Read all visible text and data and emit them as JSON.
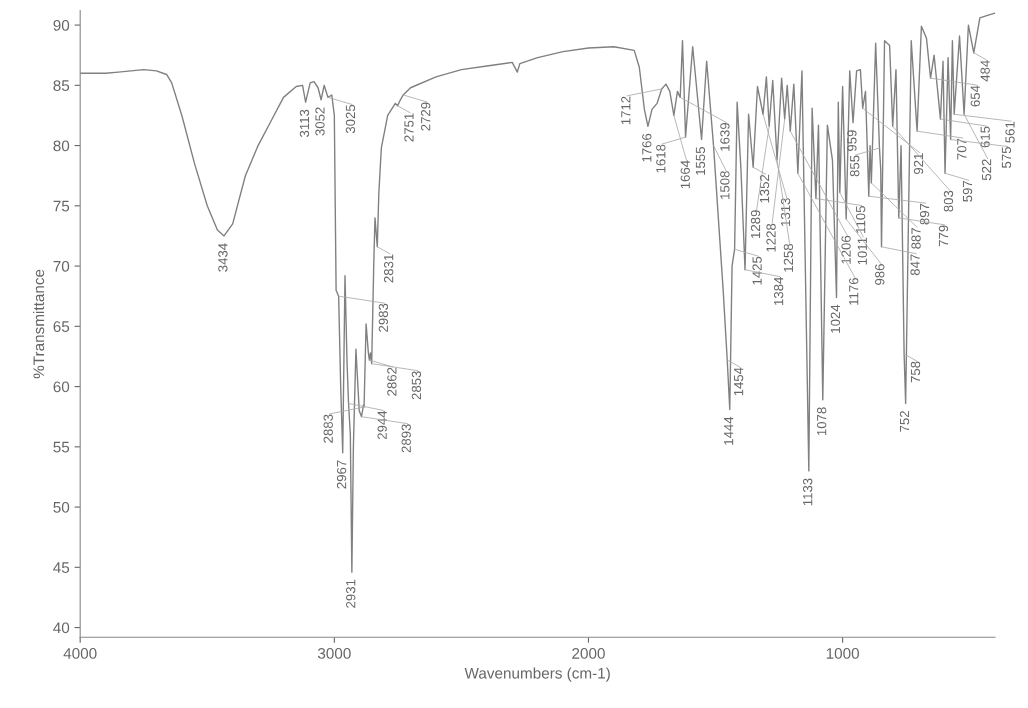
{
  "chart_data": {
    "type": "line",
    "xlabel": "Wavenumbers (cm-1)",
    "ylabel": "%Transmittance",
    "xlim": [
      4000,
      400
    ],
    "xticks": [
      4000,
      3000,
      2000,
      1000
    ],
    "ylim": [
      39.2,
      91.2
    ],
    "yticks": [
      40,
      45,
      50,
      55,
      60,
      65,
      70,
      75,
      80,
      85,
      90
    ],
    "grid": false,
    "legend": false,
    "marker": "none",
    "line_style": "solid",
    "series": [
      {
        "color": "#808080",
        "x": [
          4000,
          3900,
          3850,
          3800,
          3750,
          3700,
          3660,
          3640,
          3600,
          3550,
          3500,
          3460,
          3434,
          3400,
          3350,
          3300,
          3250,
          3200,
          3150,
          3125,
          3113,
          3095,
          3080,
          3064,
          3052,
          3040,
          3025,
          3010,
          3000,
          2993,
          2983,
          2975,
          2967,
          2958,
          2950,
          2944,
          2937,
          2931,
          2925,
          2915,
          2902,
          2893,
          2885,
          2883,
          2875,
          2866,
          2862,
          2858,
          2853,
          2845,
          2840,
          2831,
          2825,
          2815,
          2790,
          2760,
          2751,
          2740,
          2729,
          2700,
          2600,
          2500,
          2400,
          2300,
          2280,
          2270,
          2200,
          2100,
          2000,
          1900,
          1820,
          1800,
          1780,
          1766,
          1750,
          1730,
          1712,
          1695,
          1680,
          1664,
          1650,
          1639,
          1630,
          1618,
          1590,
          1555,
          1535,
          1508,
          1470,
          1454,
          1444,
          1435,
          1425,
          1415,
          1400,
          1384,
          1370,
          1352,
          1335,
          1313,
          1300,
          1289,
          1275,
          1258,
          1240,
          1228,
          1218,
          1206,
          1192,
          1176,
          1160,
          1133,
          1120,
          1105,
          1095,
          1078,
          1060,
          1040,
          1024,
          1017,
          1011,
          1000,
          986,
          972,
          959,
          945,
          930,
          921,
          910,
          897,
          892,
          887,
          870,
          855,
          850,
          847,
          835,
          815,
          803,
          790,
          779,
          770,
          758,
          752,
          730,
          707,
          690,
          670,
          654,
          640,
          615,
          605,
          597,
          585,
          575,
          568,
          561,
          540,
          522,
          505,
          484,
          460,
          430,
          400
        ],
        "values": [
          86.0,
          86.0,
          86.1,
          86.2,
          86.3,
          86.2,
          85.9,
          85.2,
          82.5,
          78.5,
          75.0,
          73.0,
          72.5,
          73.5,
          77.5,
          80.0,
          82.0,
          84.0,
          84.9,
          85.0,
          83.6,
          85.2,
          85.3,
          84.8,
          83.8,
          85.0,
          84.0,
          84.2,
          82.5,
          68.0,
          67.5,
          60,
          54.5,
          69.2,
          62,
          58.6,
          56,
          44.6,
          55,
          63.1,
          58.0,
          57.5,
          58.5,
          58.3,
          65.2,
          62.8,
          62.2,
          62.8,
          61.9,
          70.0,
          74.0,
          71.6,
          76,
          79.8,
          82.5,
          83.5,
          83.3,
          83.8,
          84.2,
          84.8,
          85.7,
          86.3,
          86.6,
          86.9,
          86.1,
          86.8,
          87.3,
          87.8,
          88.1,
          88.2,
          87.9,
          86.5,
          83,
          81.6,
          83.0,
          83.5,
          84.7,
          85.1,
          84.5,
          82.5,
          84.5,
          84.0,
          88.7,
          80.7,
          88.2,
          80.5,
          87.0,
          80.0,
          68,
          62.2,
          58.1,
          70,
          71.4,
          83.6,
          78,
          69.7,
          82.6,
          78.2,
          84.9,
          82.6,
          85.7,
          81.6,
          85.4,
          78.8,
          85.6,
          82.2,
          85.0,
          81.2,
          85.1,
          77.7,
          86.2,
          53.0,
          83.1,
          75.6,
          81.7,
          58.9,
          81.7,
          78.8,
          67.4,
          83.6,
          76.1,
          84.9,
          73.9,
          86.2,
          81.9,
          86.2,
          86.3,
          83.1,
          84.5,
          75.8,
          80,
          76.9,
          88.5,
          79.8,
          78,
          71.6,
          88.7,
          88.3,
          81.6,
          86.3,
          74.0,
          80,
          62.7,
          58.6,
          88.7,
          81.2,
          89.9,
          88.9,
          85.6,
          87.5,
          82.2,
          87,
          77.7,
          87.3,
          80.5,
          88.7,
          82.6,
          89.1,
          82.6,
          90.0,
          87.7,
          90.6,
          90.8,
          91.0
        ]
      }
    ],
    "annotations": [
      {
        "text": "3434",
        "x": 3434,
        "y": 72.5
      },
      {
        "text": "3113",
        "x": 3113,
        "y": 83.6
      },
      {
        "text": "3052",
        "x": 3052,
        "y": 83.8
      },
      {
        "text": "3025",
        "x": 3025,
        "y": 84.0
      },
      {
        "text": "2983",
        "x": 2983,
        "y": 67.5
      },
      {
        "text": "2967",
        "x": 2967,
        "y": 54.5
      },
      {
        "text": "2944",
        "x": 2944,
        "y": 58.6
      },
      {
        "text": "2931",
        "x": 2931,
        "y": 44.6
      },
      {
        "text": "2893",
        "x": 2893,
        "y": 57.5
      },
      {
        "text": "2883",
        "x": 2883,
        "y": 58.3
      },
      {
        "text": "2862",
        "x": 2862,
        "y": 62.2
      },
      {
        "text": "2853",
        "x": 2853,
        "y": 61.9
      },
      {
        "text": "2831",
        "x": 2831,
        "y": 71.6
      },
      {
        "text": "2751",
        "x": 2751,
        "y": 83.3
      },
      {
        "text": "2729",
        "x": 2729,
        "y": 84.2
      },
      {
        "text": "1766",
        "x": 1766,
        "y": 81.6
      },
      {
        "text": "1712",
        "x": 1712,
        "y": 84.7
      },
      {
        "text": "1664",
        "x": 1664,
        "y": 82.5
      },
      {
        "text": "1639",
        "x": 1639,
        "y": 84.0
      },
      {
        "text": "1618",
        "x": 1618,
        "y": 80.7
      },
      {
        "text": "1555",
        "x": 1555,
        "y": 80.5
      },
      {
        "text": "1508",
        "x": 1508,
        "y": 80.0
      },
      {
        "text": "1454",
        "x": 1454,
        "y": 62.2
      },
      {
        "text": "1444",
        "x": 1444,
        "y": 58.1
      },
      {
        "text": "1425",
        "x": 1425,
        "y": 71.4
      },
      {
        "text": "1384",
        "x": 1384,
        "y": 69.7
      },
      {
        "text": "1352",
        "x": 1352,
        "y": 78.2
      },
      {
        "text": "1313",
        "x": 1313,
        "y": 82.6
      },
      {
        "text": "1289",
        "x": 1289,
        "y": 81.6
      },
      {
        "text": "1258",
        "x": 1258,
        "y": 78.8
      },
      {
        "text": "1228",
        "x": 1228,
        "y": 82.2
      },
      {
        "text": "1206",
        "x": 1206,
        "y": 81.2
      },
      {
        "text": "1176",
        "x": 1176,
        "y": 77.7
      },
      {
        "text": "1133",
        "x": 1133,
        "y": 53.0
      },
      {
        "text": "1105",
        "x": 1105,
        "y": 75.6
      },
      {
        "text": "1078",
        "x": 1078,
        "y": 58.9
      },
      {
        "text": "1024",
        "x": 1024,
        "y": 67.4
      },
      {
        "text": "1011",
        "x": 1011,
        "y": 76.1
      },
      {
        "text": "986",
        "x": 986,
        "y": 73.9
      },
      {
        "text": "959",
        "x": 959,
        "y": 81.9
      },
      {
        "text": "921",
        "x": 921,
        "y": 83.1
      },
      {
        "text": "897",
        "x": 897,
        "y": 75.8
      },
      {
        "text": "887",
        "x": 887,
        "y": 76.9
      },
      {
        "text": "855",
        "x": 855,
        "y": 79.8
      },
      {
        "text": "847",
        "x": 847,
        "y": 71.6
      },
      {
        "text": "803",
        "x": 803,
        "y": 81.6
      },
      {
        "text": "779",
        "x": 779,
        "y": 74.0
      },
      {
        "text": "758",
        "x": 758,
        "y": 62.7
      },
      {
        "text": "752",
        "x": 752,
        "y": 58.6
      },
      {
        "text": "707",
        "x": 707,
        "y": 81.2
      },
      {
        "text": "654",
        "x": 654,
        "y": 85.6
      },
      {
        "text": "615",
        "x": 615,
        "y": 82.2
      },
      {
        "text": "597",
        "x": 597,
        "y": 77.7
      },
      {
        "text": "575",
        "x": 575,
        "y": 80.5
      },
      {
        "text": "561",
        "x": 561,
        "y": 82.6
      },
      {
        "text": "522",
        "x": 522,
        "y": 82.6
      },
      {
        "text": "484",
        "x": 484,
        "y": 87.7
      }
    ]
  }
}
